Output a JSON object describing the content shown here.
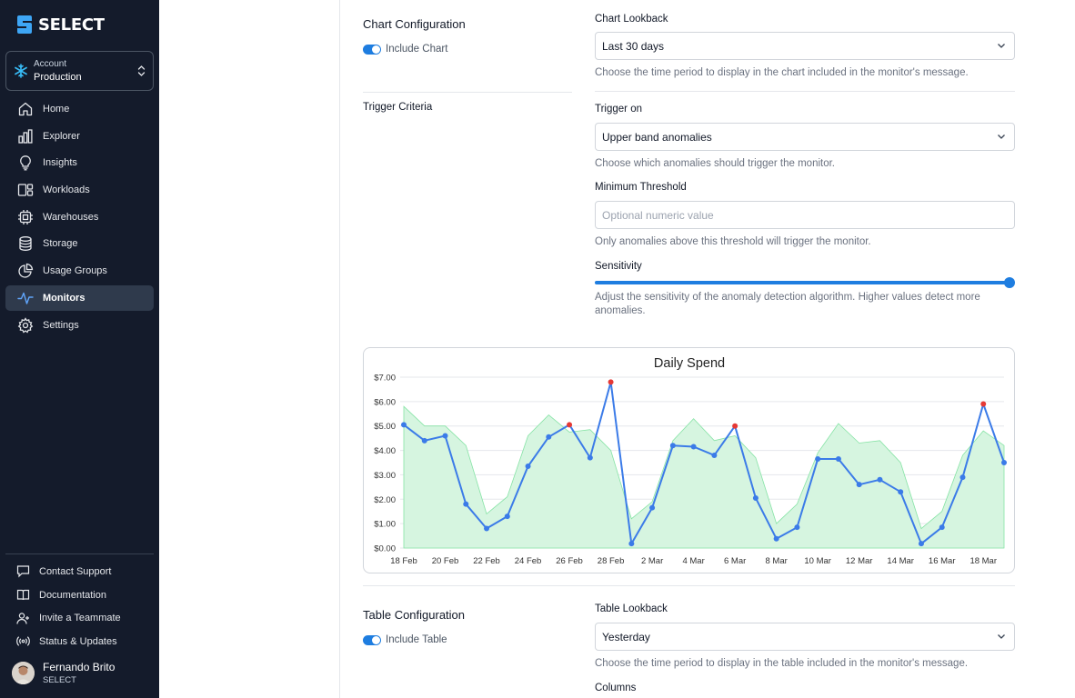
{
  "sidebar": {
    "brand": "SELECT",
    "account": {
      "label": "Account",
      "value": "Production"
    },
    "nav": [
      {
        "label": "Home",
        "icon": "home-icon"
      },
      {
        "label": "Explorer",
        "icon": "bar-chart-icon"
      },
      {
        "label": "Insights",
        "icon": "lightbulb-icon"
      },
      {
        "label": "Workloads",
        "icon": "workloads-icon"
      },
      {
        "label": "Warehouses",
        "icon": "cpu-icon"
      },
      {
        "label": "Storage",
        "icon": "database-icon"
      },
      {
        "label": "Usage Groups",
        "icon": "pie-chart-icon"
      },
      {
        "label": "Monitors",
        "icon": "activity-icon",
        "active": true
      },
      {
        "label": "Settings",
        "icon": "gear-icon"
      }
    ],
    "links": [
      {
        "label": "Contact Support",
        "icon": "chat-icon"
      },
      {
        "label": "Documentation",
        "icon": "book-icon"
      },
      {
        "label": "Invite a Teammate",
        "icon": "user-plus-icon"
      },
      {
        "label": "Status & Updates",
        "icon": "broadcast-icon"
      }
    ],
    "user": {
      "name": "Fernando Brito",
      "org": "SELECT"
    }
  },
  "chart_config": {
    "title": "Chart Configuration",
    "toggle_label": "Include Chart",
    "lookback_label": "Chart Lookback",
    "lookback_value": "Last 30 days",
    "lookback_help": "Choose the time period to display in the chart included in the monitor's message."
  },
  "trigger": {
    "title": "Trigger Criteria",
    "trigger_on_label": "Trigger on",
    "trigger_on_value": "Upper band anomalies",
    "trigger_on_help": "Choose which anomalies should trigger the monitor.",
    "threshold_label": "Minimum Threshold",
    "threshold_placeholder": "Optional numeric value",
    "threshold_help": "Only anomalies above this threshold will trigger the monitor.",
    "sensitivity_label": "Sensitivity",
    "sensitivity_value": 1.0,
    "sensitivity_help": "Adjust the sensitivity of the anomaly detection algorithm. Higher values detect more anomalies."
  },
  "table_config": {
    "title": "Table Configuration",
    "toggle_label": "Include Table",
    "lookback_label": "Table Lookback",
    "lookback_value": "Yesterday",
    "lookback_help": "Choose the time period to display in the table included in the monitor's message.",
    "columns_label": "Columns"
  },
  "colors": {
    "line": "#3b7be8",
    "band": "#d6f5e0",
    "band_edge": "#86e3a5",
    "anomaly": "#e53935",
    "accent": "#1e7de0"
  },
  "chart_data": {
    "type": "line",
    "title": "Daily Spend",
    "ylim": [
      0,
      7
    ],
    "y_ticks": [
      "$0.00",
      "$1.00",
      "$2.00",
      "$3.00",
      "$4.00",
      "$5.00",
      "$6.00",
      "$7.00"
    ],
    "x_ticks": [
      "18 Feb",
      "20 Feb",
      "22 Feb",
      "24 Feb",
      "26 Feb",
      "28 Feb",
      "2 Mar",
      "4 Mar",
      "6 Mar",
      "8 Mar",
      "10 Mar",
      "12 Mar",
      "14 Mar",
      "16 Mar",
      "18 Mar"
    ],
    "x": [
      "18 Feb",
      "19 Feb",
      "20 Feb",
      "21 Feb",
      "22 Feb",
      "23 Feb",
      "24 Feb",
      "25 Feb",
      "26 Feb",
      "27 Feb",
      "28 Feb",
      "1 Mar",
      "2 Mar",
      "3 Mar",
      "4 Mar",
      "5 Mar",
      "6 Mar",
      "7 Mar",
      "8 Mar",
      "9 Mar",
      "10 Mar",
      "11 Mar",
      "12 Mar",
      "13 Mar",
      "14 Mar",
      "15 Mar",
      "16 Mar",
      "17 Mar",
      "18 Mar",
      "19 Mar"
    ],
    "grid": true,
    "series": [
      {
        "values": [
          5.05,
          4.4,
          4.6,
          1.8,
          0.8,
          1.3,
          3.35,
          4.55,
          5.05,
          3.7,
          6.8,
          0.18,
          1.65,
          4.2,
          4.15,
          3.8,
          5.0,
          2.05,
          0.38,
          0.85,
          3.65,
          3.65,
          2.6,
          2.8,
          2.3,
          0.18,
          0.85,
          2.9,
          5.9,
          3.5
        ],
        "anomalies": [
          "26 Feb",
          "28 Feb",
          "6 Mar",
          "18 Mar"
        ]
      }
    ],
    "band": {
      "upper": [
        5.8,
        5.0,
        5.0,
        4.2,
        1.4,
        2.1,
        4.6,
        5.45,
        4.75,
        4.85,
        4.0,
        1.2,
        1.9,
        4.4,
        5.3,
        4.4,
        4.6,
        3.7,
        1.0,
        1.8,
        3.9,
        5.1,
        4.3,
        4.4,
        3.5,
        0.8,
        1.5,
        3.8,
        4.8,
        4.2
      ],
      "lower": [
        0,
        0,
        0,
        0,
        0,
        0,
        0,
        0,
        0,
        0,
        0,
        0,
        0,
        0,
        0,
        0,
        0,
        0,
        0,
        0,
        0,
        0,
        0,
        0,
        0,
        0,
        0,
        0,
        0,
        0
      ]
    }
  }
}
